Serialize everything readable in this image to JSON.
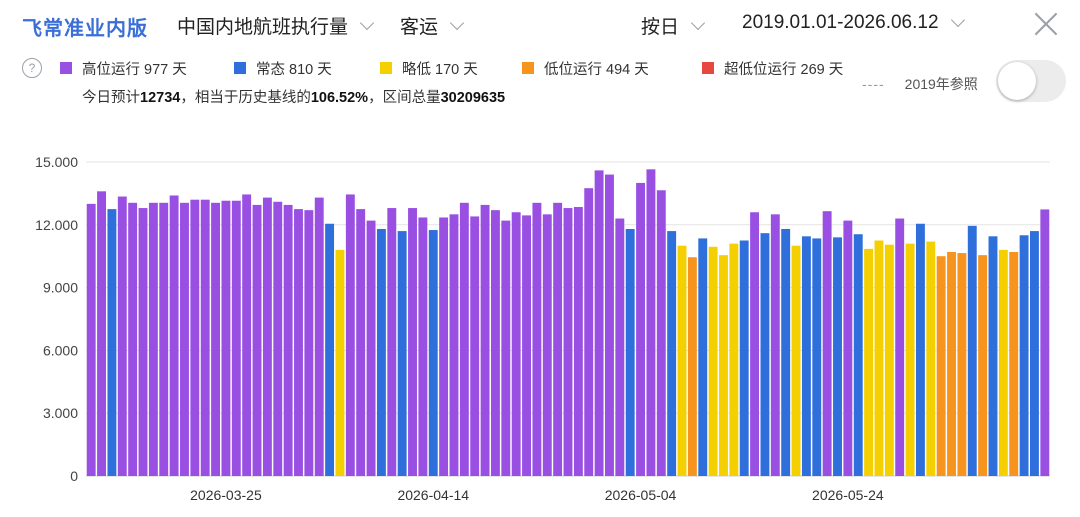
{
  "header": {
    "brand": "飞常准业内版",
    "metric_dropdown": "中国内地航班执行量",
    "type_dropdown": "客运",
    "granularity_dropdown": "按日",
    "date_range_dropdown": "2019.01.01-2026.06.12"
  },
  "legend": {
    "items": [
      {
        "label": "高位运行 977 天",
        "color": "#9a4fe3"
      },
      {
        "label": "常态 810 天",
        "color": "#2f6fdc"
      },
      {
        "label": "略低 170 天",
        "color": "#f5d000"
      },
      {
        "label": "低位运行 494 天",
        "color": "#f7941d"
      },
      {
        "label": "超低位运行 269 天",
        "color": "#e8473f"
      }
    ]
  },
  "summary": {
    "prefix": "今日预计",
    "today_value": "12734",
    "middle": "，相当于历史基线的",
    "percent": "106.52%",
    "suffix": "，区间总量",
    "total": "30209635"
  },
  "reference": {
    "dash": "----",
    "label": "2019年参照",
    "toggle_on": false
  },
  "chart_data": {
    "type": "bar",
    "ylim": [
      0,
      15000
    ],
    "yticks": [
      0,
      3000,
      6000,
      9000,
      12000,
      15000
    ],
    "ytick_labels": [
      "0",
      "3.000",
      "6.000",
      "9.000",
      "12.000",
      "15.000"
    ],
    "xtick_labels": [
      "2026-03-25",
      "2026-04-14",
      "2026-05-04",
      "2026-05-24"
    ],
    "xtick_indices": [
      13,
      33,
      53,
      73
    ],
    "colors": {
      "high": "#9a4fe3",
      "normal": "#2f6fdc",
      "slight_low": "#f5d000",
      "low": "#f7941d",
      "ultra_low": "#e8473f"
    },
    "bars": [
      {
        "v": 13000,
        "c": "high"
      },
      {
        "v": 13600,
        "c": "high"
      },
      {
        "v": 12750,
        "c": "normal"
      },
      {
        "v": 13350,
        "c": "high"
      },
      {
        "v": 13050,
        "c": "high"
      },
      {
        "v": 12800,
        "c": "high"
      },
      {
        "v": 13050,
        "c": "high"
      },
      {
        "v": 13050,
        "c": "high"
      },
      {
        "v": 13400,
        "c": "high"
      },
      {
        "v": 13050,
        "c": "high"
      },
      {
        "v": 13200,
        "c": "high"
      },
      {
        "v": 13200,
        "c": "high"
      },
      {
        "v": 13050,
        "c": "high"
      },
      {
        "v": 13150,
        "c": "high"
      },
      {
        "v": 13150,
        "c": "high"
      },
      {
        "v": 13450,
        "c": "high"
      },
      {
        "v": 12950,
        "c": "high"
      },
      {
        "v": 13300,
        "c": "high"
      },
      {
        "v": 13100,
        "c": "high"
      },
      {
        "v": 12950,
        "c": "high"
      },
      {
        "v": 12750,
        "c": "high"
      },
      {
        "v": 12700,
        "c": "high"
      },
      {
        "v": 13300,
        "c": "high"
      },
      {
        "v": 12050,
        "c": "normal"
      },
      {
        "v": 10800,
        "c": "slight_low"
      },
      {
        "v": 13450,
        "c": "high"
      },
      {
        "v": 12750,
        "c": "high"
      },
      {
        "v": 12200,
        "c": "high"
      },
      {
        "v": 11800,
        "c": "normal"
      },
      {
        "v": 12800,
        "c": "high"
      },
      {
        "v": 11700,
        "c": "normal"
      },
      {
        "v": 12800,
        "c": "high"
      },
      {
        "v": 12350,
        "c": "high"
      },
      {
        "v": 11750,
        "c": "normal"
      },
      {
        "v": 12350,
        "c": "high"
      },
      {
        "v": 12500,
        "c": "high"
      },
      {
        "v": 13050,
        "c": "high"
      },
      {
        "v": 12400,
        "c": "high"
      },
      {
        "v": 12950,
        "c": "high"
      },
      {
        "v": 12700,
        "c": "high"
      },
      {
        "v": 12200,
        "c": "high"
      },
      {
        "v": 12600,
        "c": "high"
      },
      {
        "v": 12450,
        "c": "high"
      },
      {
        "v": 13050,
        "c": "high"
      },
      {
        "v": 12500,
        "c": "high"
      },
      {
        "v": 13050,
        "c": "high"
      },
      {
        "v": 12800,
        "c": "high"
      },
      {
        "v": 12850,
        "c": "high"
      },
      {
        "v": 13750,
        "c": "high"
      },
      {
        "v": 14600,
        "c": "high"
      },
      {
        "v": 14400,
        "c": "high"
      },
      {
        "v": 12300,
        "c": "high"
      },
      {
        "v": 11800,
        "c": "normal"
      },
      {
        "v": 14000,
        "c": "high"
      },
      {
        "v": 14650,
        "c": "high"
      },
      {
        "v": 13650,
        "c": "high"
      },
      {
        "v": 11700,
        "c": "normal"
      },
      {
        "v": 11000,
        "c": "slight_low"
      },
      {
        "v": 10450,
        "c": "low"
      },
      {
        "v": 11350,
        "c": "normal"
      },
      {
        "v": 10950,
        "c": "slight_low"
      },
      {
        "v": 10550,
        "c": "slight_low"
      },
      {
        "v": 11100,
        "c": "slight_low"
      },
      {
        "v": 11250,
        "c": "normal"
      },
      {
        "v": 12600,
        "c": "high"
      },
      {
        "v": 11600,
        "c": "normal"
      },
      {
        "v": 12500,
        "c": "high"
      },
      {
        "v": 11800,
        "c": "normal"
      },
      {
        "v": 11000,
        "c": "slight_low"
      },
      {
        "v": 11450,
        "c": "normal"
      },
      {
        "v": 11350,
        "c": "normal"
      },
      {
        "v": 12650,
        "c": "high"
      },
      {
        "v": 11400,
        "c": "normal"
      },
      {
        "v": 12200,
        "c": "high"
      },
      {
        "v": 11550,
        "c": "normal"
      },
      {
        "v": 10850,
        "c": "slight_low"
      },
      {
        "v": 11250,
        "c": "slight_low"
      },
      {
        "v": 11050,
        "c": "slight_low"
      },
      {
        "v": 12300,
        "c": "high"
      },
      {
        "v": 11100,
        "c": "slight_low"
      },
      {
        "v": 12050,
        "c": "normal"
      },
      {
        "v": 11200,
        "c": "slight_low"
      },
      {
        "v": 10500,
        "c": "low"
      },
      {
        "v": 10700,
        "c": "low"
      },
      {
        "v": 10650,
        "c": "low"
      },
      {
        "v": 11950,
        "c": "normal"
      },
      {
        "v": 10550,
        "c": "low"
      },
      {
        "v": 11450,
        "c": "normal"
      },
      {
        "v": 10800,
        "c": "slight_low"
      },
      {
        "v": 10700,
        "c": "low"
      },
      {
        "v": 11500,
        "c": "normal"
      },
      {
        "v": 11700,
        "c": "normal"
      },
      {
        "v": 12734,
        "c": "high"
      }
    ]
  }
}
